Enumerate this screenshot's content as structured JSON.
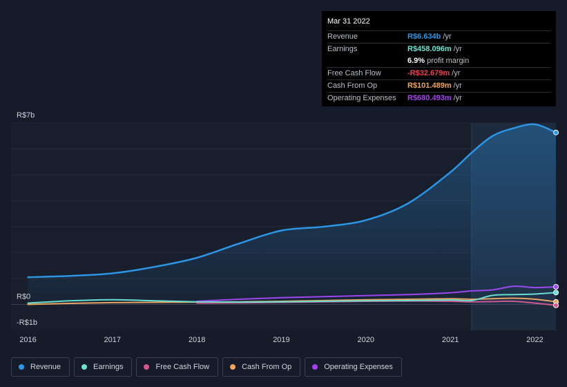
{
  "tooltip": {
    "date": "Mar 31 2022",
    "rows": [
      {
        "label": "Revenue",
        "value": "R$6.634b",
        "unit": "/yr",
        "color": "#2d95e3"
      },
      {
        "label": "Earnings",
        "value": "R$458.096m",
        "unit": "/yr",
        "color": "#6be3d0"
      },
      {
        "label": "",
        "value": "6.9%",
        "unit": "profit margin",
        "color": "#ffffff"
      },
      {
        "label": "Free Cash Flow",
        "value": "-R$32.679m",
        "unit": "/yr",
        "color": "#e8404f"
      },
      {
        "label": "Cash From Op",
        "value": "R$101.489m",
        "unit": "/yr",
        "color": "#f1a45a"
      },
      {
        "label": "Operating Expenses",
        "value": "R$680.493m",
        "unit": "/yr",
        "color": "#a541f0"
      }
    ]
  },
  "legend": [
    {
      "label": "Revenue",
      "color": "#2d95e3"
    },
    {
      "label": "Earnings",
      "color": "#6be3d0"
    },
    {
      "label": "Free Cash Flow",
      "color": "#d6568b"
    },
    {
      "label": "Cash From Op",
      "color": "#f1a45a"
    },
    {
      "label": "Operating Expenses",
      "color": "#a541f0"
    }
  ],
  "chart_data": {
    "type": "line",
    "y_tick_labels": [
      "R$7b",
      "R$0",
      "-R$1b"
    ],
    "x_tick_labels": [
      "2016",
      "2017",
      "2018",
      "2019",
      "2020",
      "2021",
      "2022"
    ],
    "ylim": [
      -1,
      7
    ],
    "xlim": [
      2015.8,
      2022.25
    ],
    "y_unit": "billions BRL",
    "highlight_from": 2021.25,
    "grid": true,
    "series": [
      {
        "name": "Revenue",
        "color": "#2d95e3",
        "area": true,
        "x": [
          2016.0,
          2016.5,
          2017.0,
          2017.5,
          2018.0,
          2018.5,
          2019.0,
          2019.5,
          2020.0,
          2020.5,
          2021.0,
          2021.25,
          2021.5,
          2021.75,
          2022.0,
          2022.25
        ],
        "y": [
          1.05,
          1.1,
          1.2,
          1.45,
          1.8,
          2.35,
          2.85,
          3.0,
          3.25,
          3.9,
          5.1,
          5.85,
          6.5,
          6.8,
          6.95,
          6.634
        ]
      },
      {
        "name": "Earnings",
        "color": "#6be3d0",
        "x": [
          2016.0,
          2016.5,
          2017.0,
          2017.5,
          2018.0,
          2018.5,
          2019.0,
          2019.5,
          2020.0,
          2020.5,
          2021.0,
          2021.25,
          2021.5,
          2021.75,
          2022.0,
          2022.25
        ],
        "y": [
          0.05,
          0.14,
          0.18,
          0.14,
          0.1,
          0.09,
          0.1,
          0.12,
          0.14,
          0.15,
          0.17,
          0.15,
          0.35,
          0.38,
          0.4,
          0.458
        ]
      },
      {
        "name": "Free Cash Flow",
        "color": "#d6568b",
        "x": [
          2018.0,
          2018.5,
          2019.0,
          2019.5,
          2020.0,
          2020.5,
          2021.0,
          2021.25,
          2021.5,
          2021.75,
          2022.0,
          2022.25
        ],
        "y": [
          0.05,
          0.06,
          0.08,
          0.1,
          0.12,
          0.13,
          0.12,
          0.1,
          0.11,
          0.12,
          0.05,
          -0.033
        ]
      },
      {
        "name": "Cash From Op",
        "color": "#f1a45a",
        "x": [
          2016.0,
          2016.5,
          2017.0,
          2017.5,
          2018.0,
          2018.5,
          2019.0,
          2019.5,
          2020.0,
          2020.5,
          2021.0,
          2021.25,
          2021.5,
          2021.75,
          2022.0,
          2022.25
        ],
        "y": [
          0.0,
          0.04,
          0.07,
          0.08,
          0.09,
          0.1,
          0.12,
          0.15,
          0.18,
          0.2,
          0.22,
          0.2,
          0.22,
          0.24,
          0.2,
          0.101
        ]
      },
      {
        "name": "Operating Expenses",
        "color": "#a541f0",
        "x": [
          2018.0,
          2018.5,
          2019.0,
          2019.5,
          2020.0,
          2020.5,
          2021.0,
          2021.25,
          2021.5,
          2021.75,
          2022.0,
          2022.25
        ],
        "y": [
          0.12,
          0.2,
          0.26,
          0.3,
          0.34,
          0.38,
          0.45,
          0.52,
          0.56,
          0.7,
          0.65,
          0.68
        ]
      }
    ]
  }
}
